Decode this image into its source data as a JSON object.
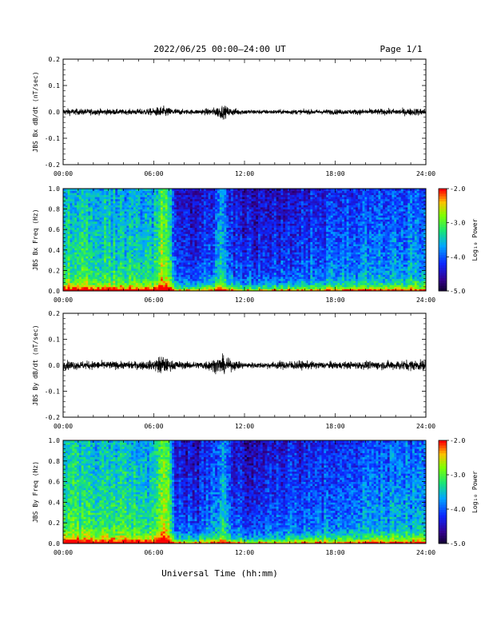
{
  "header": {
    "title": "2022/06/25  00:00–24:00 UT",
    "page": "Page 1/1"
  },
  "footer": {
    "xlabel": "Universal Time (hh:mm)"
  },
  "x_ticks": [
    "00:00",
    "06:00",
    "12:00",
    "18:00",
    "24:00"
  ],
  "chart_data": [
    {
      "type": "line",
      "ylabel": "JBS Bx dB/dt (nT/sec)",
      "ylim": [
        -0.2,
        0.2
      ],
      "yticks": [
        "-0.2",
        "-0.1",
        "0.0",
        "0.1",
        "0.2"
      ],
      "xlim": [
        0,
        24
      ],
      "envelope": {
        "x": [
          0,
          1,
          2,
          3,
          4,
          5,
          6,
          6.5,
          7,
          8,
          9,
          10,
          10.5,
          11,
          12,
          13,
          14,
          15,
          16,
          17,
          18,
          19,
          20,
          21,
          22,
          23,
          24
        ],
        "amplitude": [
          0.03,
          0.025,
          0.025,
          0.025,
          0.02,
          0.025,
          0.03,
          0.05,
          0.035,
          0.02,
          0.02,
          0.035,
          0.06,
          0.035,
          0.02,
          0.018,
          0.018,
          0.02,
          0.02,
          0.02,
          0.022,
          0.02,
          0.025,
          0.025,
          0.025,
          0.03,
          0.03
        ]
      }
    },
    {
      "type": "heatmap",
      "ylabel": "JBS Bx Freq (Hz)",
      "ylim": [
        0,
        1
      ],
      "yticks": [
        "0.0",
        "0.2",
        "0.4",
        "0.6",
        "0.8",
        "1.0"
      ],
      "xlim": [
        0,
        24
      ],
      "colorbar": {
        "label": "Log₁₀ Power",
        "ticks": [
          "-2.0",
          "-3.0",
          "-4.0",
          "-5.0"
        ],
        "range": [
          -5,
          -2
        ]
      },
      "activity": {
        "x": [
          0,
          3,
          6,
          6.5,
          7,
          7.5,
          9,
          10,
          10.5,
          11,
          12,
          15,
          18,
          21,
          24
        ],
        "level": [
          0.62,
          0.58,
          0.55,
          0.75,
          0.7,
          0.3,
          0.3,
          0.4,
          0.55,
          0.35,
          0.28,
          0.32,
          0.38,
          0.42,
          0.45
        ]
      }
    },
    {
      "type": "line",
      "ylabel": "JBS By dB/dt (nT/sec)",
      "ylim": [
        -0.2,
        0.2
      ],
      "yticks": [
        "-0.2",
        "-0.1",
        "0.0",
        "0.1",
        "0.2"
      ],
      "xlim": [
        0,
        24
      ],
      "envelope": {
        "x": [
          0,
          1,
          2,
          3,
          4,
          5,
          6,
          6.5,
          7,
          8,
          9,
          10,
          10.5,
          11,
          12,
          13,
          14,
          15,
          16,
          17,
          18,
          19,
          20,
          21,
          22,
          23,
          24
        ],
        "amplitude": [
          0.04,
          0.035,
          0.035,
          0.035,
          0.03,
          0.035,
          0.04,
          0.09,
          0.045,
          0.03,
          0.03,
          0.055,
          0.08,
          0.05,
          0.025,
          0.025,
          0.03,
          0.04,
          0.035,
          0.03,
          0.03,
          0.03,
          0.035,
          0.035,
          0.04,
          0.045,
          0.045
        ]
      }
    },
    {
      "type": "heatmap",
      "ylabel": "JBS By Freq (Hz)",
      "ylim": [
        0,
        1
      ],
      "yticks": [
        "0.0",
        "0.2",
        "0.4",
        "0.6",
        "0.8",
        "1.0"
      ],
      "xlim": [
        0,
        24
      ],
      "colorbar": {
        "label": "Log₁₀ Power",
        "ticks": [
          "-2.0",
          "-3.0",
          "-4.0",
          "-5.0"
        ],
        "range": [
          -5,
          -2
        ]
      },
      "activity": {
        "x": [
          0,
          3,
          6,
          6.5,
          7,
          7.5,
          9,
          10,
          10.5,
          11,
          12,
          15,
          18,
          21,
          24
        ],
        "level": [
          0.65,
          0.6,
          0.58,
          0.78,
          0.72,
          0.3,
          0.3,
          0.42,
          0.58,
          0.35,
          0.28,
          0.35,
          0.4,
          0.45,
          0.48
        ]
      }
    }
  ]
}
